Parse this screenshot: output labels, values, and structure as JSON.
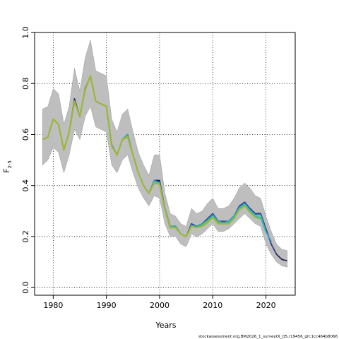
{
  "chart_data": {
    "type": "line",
    "xlabel": "Years",
    "ylabel_main": "F",
    "ylabel_sub": "2-5",
    "xlim": [
      1976.5,
      2025.5
    ],
    "ylim": [
      -0.03,
      1.0
    ],
    "xticks": [
      1980,
      1990,
      2000,
      2010,
      2020
    ],
    "xtick_labels": [
      "1980",
      "1990",
      "2000",
      "2010",
      "2020"
    ],
    "yticks": [
      0.0,
      0.2,
      0.4,
      0.6,
      0.8,
      1.0
    ],
    "ytick_labels": [
      "0.0",
      "0.2",
      "0.4",
      "0.6",
      "0.8",
      "1.0"
    ],
    "grid": true,
    "credit": "stockassessment.org,BM2026_1_surveyOl_Q5,r19456_git:1cc464b8066",
    "colors": {
      "band": "#bebebe",
      "band_edge": "#999999",
      "series": [
        "#1a1a4a",
        "#2f3f8f",
        "#2aa0c8",
        "#3cbfa0",
        "#6cbf45",
        "#9ab83a"
      ]
    },
    "band": {
      "x": [
        1978,
        1979,
        1980,
        1981,
        1982,
        1983,
        1984,
        1985,
        1986,
        1987,
        1988,
        1989,
        1990,
        1991,
        1992,
        1993,
        1994,
        1995,
        1996,
        1997,
        1998,
        1999,
        2000,
        2001,
        2002,
        2003,
        2004,
        2005,
        2006,
        2007,
        2008,
        2009,
        2010,
        2011,
        2012,
        2013,
        2014,
        2015,
        2016,
        2017,
        2018,
        2019,
        2020,
        2021,
        2022,
        2023,
        2024
      ],
      "lower": [
        0.48,
        0.5,
        0.55,
        0.53,
        0.45,
        0.52,
        0.62,
        0.58,
        0.67,
        0.71,
        0.63,
        0.62,
        0.61,
        0.48,
        0.45,
        0.5,
        0.52,
        0.45,
        0.39,
        0.35,
        0.32,
        0.36,
        0.35,
        0.25,
        0.2,
        0.2,
        0.17,
        0.16,
        0.21,
        0.2,
        0.21,
        0.23,
        0.25,
        0.22,
        0.22,
        0.23,
        0.25,
        0.27,
        0.29,
        0.27,
        0.25,
        0.24,
        0.17,
        0.13,
        0.1,
        0.085,
        0.08
      ],
      "upper": [
        0.7,
        0.71,
        0.78,
        0.76,
        0.64,
        0.71,
        0.86,
        0.77,
        0.9,
        0.97,
        0.85,
        0.84,
        0.83,
        0.66,
        0.61,
        0.68,
        0.7,
        0.61,
        0.53,
        0.48,
        0.44,
        0.52,
        0.52,
        0.37,
        0.29,
        0.28,
        0.25,
        0.24,
        0.31,
        0.29,
        0.3,
        0.33,
        0.35,
        0.31,
        0.31,
        0.32,
        0.35,
        0.39,
        0.41,
        0.39,
        0.36,
        0.35,
        0.28,
        0.22,
        0.17,
        0.15,
        0.145
      ]
    },
    "series": [
      {
        "x": [
          1978,
          1979,
          1980,
          1981,
          1982,
          1983,
          1984,
          1985,
          1986,
          1987,
          1988,
          1989,
          1990,
          1991,
          1992,
          1993,
          1994,
          1995,
          1996,
          1997,
          1998,
          1999,
          2000,
          2001,
          2002,
          2003,
          2004,
          2005,
          2006,
          2007,
          2008,
          2009,
          2010,
          2011,
          2012,
          2013,
          2014,
          2015,
          2016,
          2017,
          2018,
          2019,
          2020,
          2021,
          2022,
          2023,
          2024
        ],
        "values": [
          0.58,
          0.59,
          0.66,
          0.64,
          0.54,
          0.61,
          0.74,
          0.67,
          0.78,
          0.83,
          0.73,
          0.72,
          0.71,
          0.56,
          0.52,
          0.58,
          0.6,
          0.52,
          0.45,
          0.4,
          0.37,
          0.42,
          0.42,
          0.31,
          0.24,
          0.24,
          0.21,
          0.2,
          0.25,
          0.24,
          0.25,
          0.27,
          0.29,
          0.26,
          0.26,
          0.26,
          0.28,
          0.32,
          0.33,
          0.31,
          0.29,
          0.29,
          0.23,
          0.17,
          0.13,
          0.11,
          0.105
        ]
      },
      {
        "x": [
          1978,
          1979,
          1980,
          1981,
          1982,
          1983,
          1984,
          1985,
          1986,
          1987,
          1988,
          1989,
          1990,
          1991,
          1992,
          1993,
          1994,
          1995,
          1996,
          1997,
          1998,
          1999,
          2000,
          2001,
          2002,
          2003,
          2004,
          2005,
          2006,
          2007,
          2008,
          2009,
          2010,
          2011,
          2012,
          2013,
          2014,
          2015,
          2016,
          2017,
          2018,
          2019,
          2020,
          2021,
          2022
        ],
        "values": [
          0.58,
          0.59,
          0.66,
          0.64,
          0.54,
          0.61,
          0.735,
          0.67,
          0.775,
          0.83,
          0.73,
          0.72,
          0.71,
          0.56,
          0.52,
          0.58,
          0.6,
          0.52,
          0.45,
          0.4,
          0.37,
          0.42,
          0.415,
          0.31,
          0.24,
          0.24,
          0.21,
          0.2,
          0.25,
          0.24,
          0.25,
          0.27,
          0.29,
          0.26,
          0.26,
          0.26,
          0.28,
          0.32,
          0.335,
          0.31,
          0.29,
          0.29,
          0.23,
          0.17,
          0.13
        ]
      },
      {
        "x": [
          1978,
          1979,
          1980,
          1981,
          1982,
          1983,
          1984,
          1985,
          1986,
          1987,
          1988,
          1989,
          1990,
          1991,
          1992,
          1993,
          1994,
          1995,
          1996,
          1997,
          1998,
          1999,
          2000,
          2001,
          2002,
          2003,
          2004,
          2005,
          2006,
          2007,
          2008,
          2009,
          2010,
          2011,
          2012,
          2013,
          2014,
          2015,
          2016,
          2017,
          2018,
          2019,
          2020,
          2021
        ],
        "values": [
          0.58,
          0.59,
          0.66,
          0.64,
          0.54,
          0.61,
          0.73,
          0.67,
          0.775,
          0.83,
          0.73,
          0.72,
          0.71,
          0.56,
          0.52,
          0.58,
          0.6,
          0.52,
          0.45,
          0.4,
          0.37,
          0.42,
          0.41,
          0.31,
          0.24,
          0.24,
          0.21,
          0.2,
          0.245,
          0.24,
          0.25,
          0.265,
          0.285,
          0.26,
          0.255,
          0.26,
          0.28,
          0.315,
          0.33,
          0.305,
          0.285,
          0.285,
          0.22,
          0.18
        ]
      },
      {
        "x": [
          1978,
          1979,
          1980,
          1981,
          1982,
          1983,
          1984,
          1985,
          1986,
          1987,
          1988,
          1989,
          1990,
          1991,
          1992,
          1993,
          1994,
          1995,
          1996,
          1997,
          1998,
          1999,
          2000,
          2001,
          2002,
          2003,
          2004,
          2005,
          2006,
          2007,
          2008,
          2009,
          2010,
          2011,
          2012,
          2013,
          2014,
          2015,
          2016,
          2017,
          2018,
          2019,
          2020
        ],
        "values": [
          0.58,
          0.59,
          0.66,
          0.64,
          0.54,
          0.61,
          0.73,
          0.67,
          0.775,
          0.83,
          0.73,
          0.72,
          0.71,
          0.555,
          0.52,
          0.58,
          0.595,
          0.52,
          0.45,
          0.4,
          0.37,
          0.415,
          0.41,
          0.305,
          0.24,
          0.235,
          0.21,
          0.2,
          0.24,
          0.235,
          0.245,
          0.26,
          0.28,
          0.255,
          0.25,
          0.255,
          0.275,
          0.31,
          0.325,
          0.3,
          0.28,
          0.275,
          0.215
        ]
      },
      {
        "x": [
          1978,
          1979,
          1980,
          1981,
          1982,
          1983,
          1984,
          1985,
          1986,
          1987,
          1988,
          1989,
          1990,
          1991,
          1992,
          1993,
          1994,
          1995,
          1996,
          1997,
          1998,
          1999,
          2000,
          2001,
          2002,
          2003,
          2004,
          2005,
          2006,
          2007,
          2008,
          2009,
          2010,
          2011,
          2012,
          2013,
          2014,
          2015,
          2016,
          2017,
          2018,
          2019
        ],
        "values": [
          0.58,
          0.59,
          0.66,
          0.64,
          0.54,
          0.61,
          0.73,
          0.67,
          0.775,
          0.83,
          0.73,
          0.72,
          0.71,
          0.555,
          0.52,
          0.58,
          0.595,
          0.52,
          0.45,
          0.4,
          0.37,
          0.41,
          0.405,
          0.305,
          0.235,
          0.235,
          0.21,
          0.2,
          0.24,
          0.235,
          0.245,
          0.26,
          0.275,
          0.255,
          0.25,
          0.25,
          0.27,
          0.305,
          0.32,
          0.295,
          0.275,
          0.27
        ]
      },
      {
        "x": [
          1978,
          1979,
          1980,
          1981,
          1982,
          1983,
          1984,
          1985,
          1986,
          1987,
          1988,
          1989,
          1990,
          1991,
          1992,
          1993,
          1994,
          1995,
          1996,
          1997,
          1998,
          1999,
          2000,
          2001,
          2002,
          2003,
          2004,
          2005,
          2006,
          2007,
          2008,
          2009,
          2010,
          2011,
          2012,
          2013,
          2014,
          2015,
          2016,
          2017,
          2018
        ],
        "values": [
          0.58,
          0.59,
          0.66,
          0.64,
          0.54,
          0.61,
          0.73,
          0.67,
          0.775,
          0.83,
          0.73,
          0.72,
          0.71,
          0.555,
          0.52,
          0.58,
          0.59,
          0.52,
          0.45,
          0.4,
          0.37,
          0.41,
          0.405,
          0.305,
          0.235,
          0.235,
          0.21,
          0.2,
          0.24,
          0.235,
          0.24,
          0.255,
          0.275,
          0.25,
          0.25,
          0.25,
          0.27,
          0.305,
          0.32,
          0.295,
          0.275
        ]
      }
    ]
  }
}
